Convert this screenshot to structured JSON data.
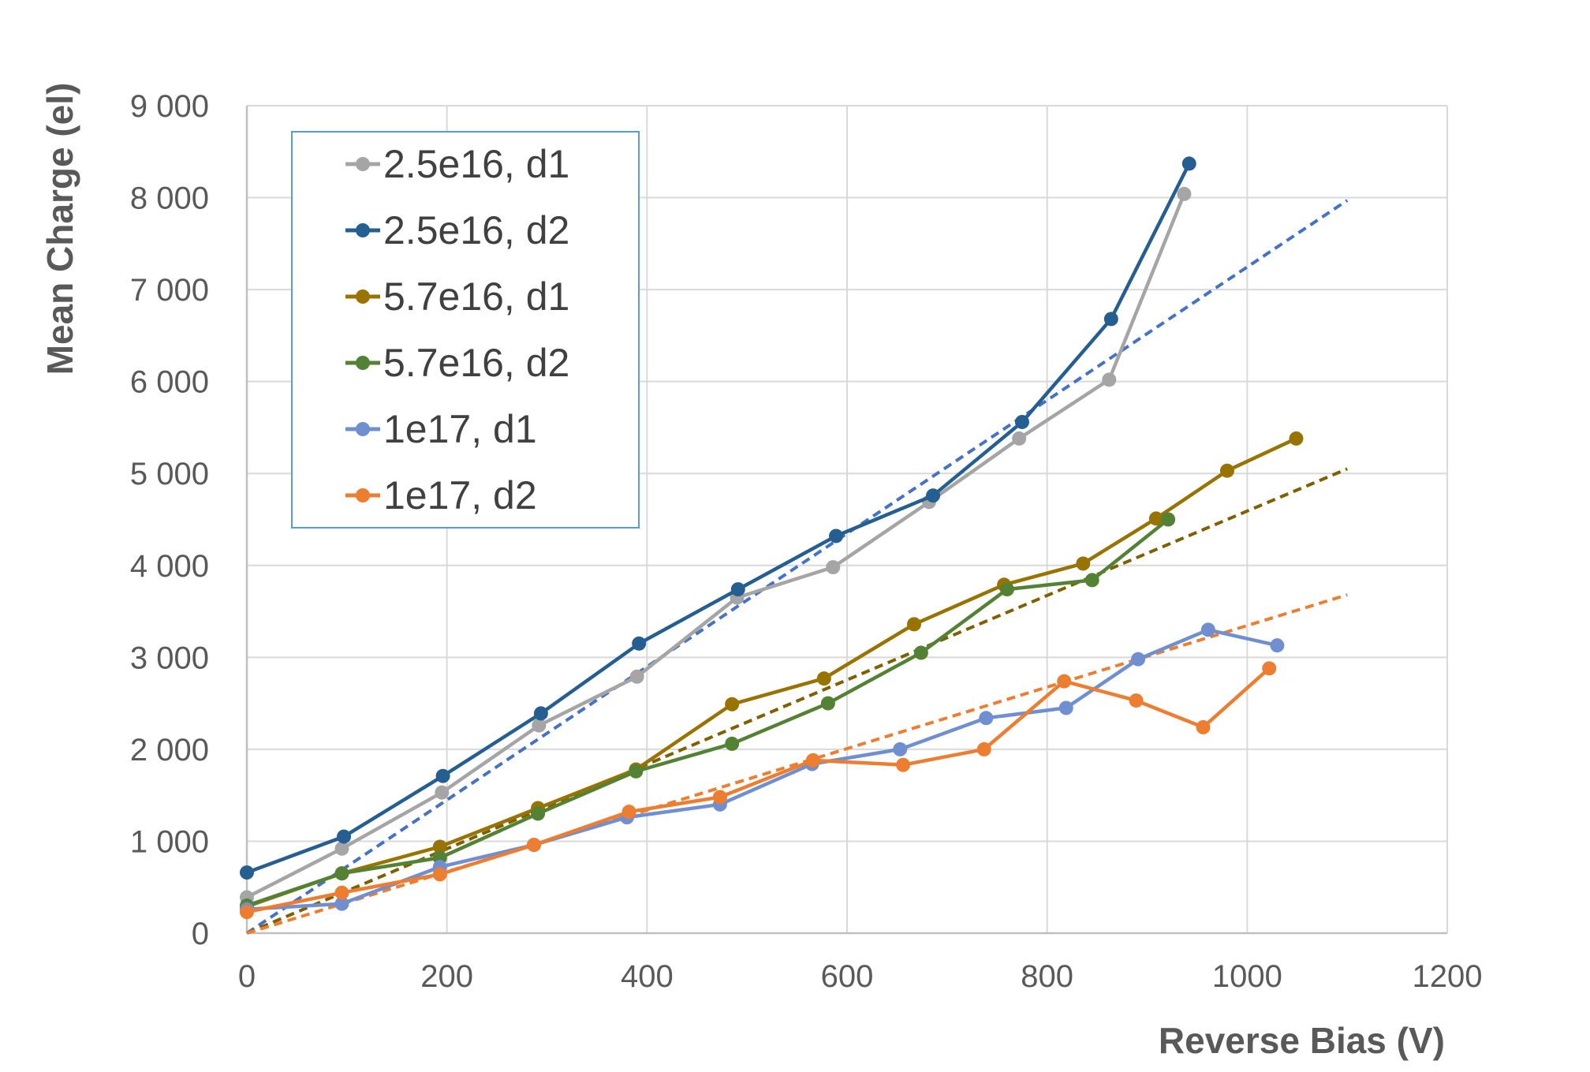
{
  "chart_data": {
    "type": "line",
    "title": "",
    "xlabel": "Reverse Bias (V)",
    "ylabel": "Mean Charge (el)",
    "xlim": [
      0,
      1200
    ],
    "ylim": [
      0,
      9000
    ],
    "xticks": [
      0,
      200,
      400,
      600,
      800,
      1000,
      1200
    ],
    "yticks": [
      0,
      1000,
      2000,
      3000,
      4000,
      5000,
      6000,
      7000,
      8000,
      9000
    ],
    "xtick_labels": [
      "0",
      "200",
      "400",
      "600",
      "800",
      "1000",
      "1200"
    ],
    "ytick_labels": [
      "0",
      "1 000",
      "2 000",
      "3 000",
      "4 000",
      "5 000",
      "6 000",
      "7 000",
      "8 000",
      "9 000"
    ],
    "grid": true,
    "legend_position": "top-left",
    "series": [
      {
        "name": "2.5e16, d1",
        "color": "#a5a5a5",
        "x": [
          0,
          95,
          195,
          292,
          390,
          490,
          586,
          682,
          772,
          862,
          937
        ],
        "y": [
          390,
          920,
          1530,
          2260,
          2790,
          3650,
          3980,
          4690,
          5380,
          6020,
          8040
        ]
      },
      {
        "name": "2.5e16, d2",
        "color": "#255e91",
        "x": [
          0,
          97,
          196,
          294,
          392,
          491,
          589,
          686,
          775,
          864,
          942
        ],
        "y": [
          660,
          1050,
          1710,
          2390,
          3150,
          3740,
          4320,
          4760,
          5560,
          6680,
          8370
        ]
      },
      {
        "name": "5.7e16, d1",
        "color": "#997300",
        "x": [
          0,
          95,
          193,
          291,
          389,
          485,
          577,
          667,
          757,
          836,
          909,
          980,
          1049
        ],
        "y": [
          290,
          650,
          940,
          1360,
          1780,
          2490,
          2770,
          3360,
          3790,
          4020,
          4510,
          5030,
          5380
        ]
      },
      {
        "name": "5.7e16, d2",
        "color": "#548235",
        "x": [
          0,
          95,
          193,
          291,
          389,
          485,
          581,
          674,
          760,
          845,
          921
        ],
        "y": [
          300,
          650,
          820,
          1300,
          1760,
          2060,
          2500,
          3050,
          3740,
          3840,
          4500
        ]
      },
      {
        "name": "1e17, d1",
        "color": "#6f8fd0",
        "x": [
          0,
          95,
          193,
          287,
          380,
          473,
          565,
          653,
          739,
          819,
          891,
          961,
          1030
        ],
        "y": [
          260,
          320,
          720,
          960,
          1260,
          1400,
          1840,
          2000,
          2340,
          2450,
          2980,
          3300,
          3130
        ]
      },
      {
        "name": "1e17, d2",
        "color": "#ed7d31",
        "x": [
          0,
          95,
          193,
          287,
          382,
          473,
          566,
          656,
          737,
          817,
          889,
          956,
          1022
        ],
        "y": [
          230,
          440,
          640,
          960,
          1320,
          1480,
          1880,
          1830,
          2000,
          2740,
          2530,
          2240,
          2880
        ]
      }
    ],
    "trendlines": [
      {
        "series": "2.5e16, d2",
        "color": "#4472c4",
        "style": "dashed",
        "x": [
          0,
          1100
        ],
        "y": [
          0,
          7970
        ]
      },
      {
        "series": "5.7e16, d1",
        "color": "#7f6000",
        "style": "dashed",
        "x": [
          0,
          1100
        ],
        "y": [
          0,
          5050
        ]
      },
      {
        "series": "1e17, d2",
        "color": "#ed7d31",
        "style": "dashed",
        "x": [
          0,
          1100
        ],
        "y": [
          0,
          3680
        ]
      }
    ]
  }
}
